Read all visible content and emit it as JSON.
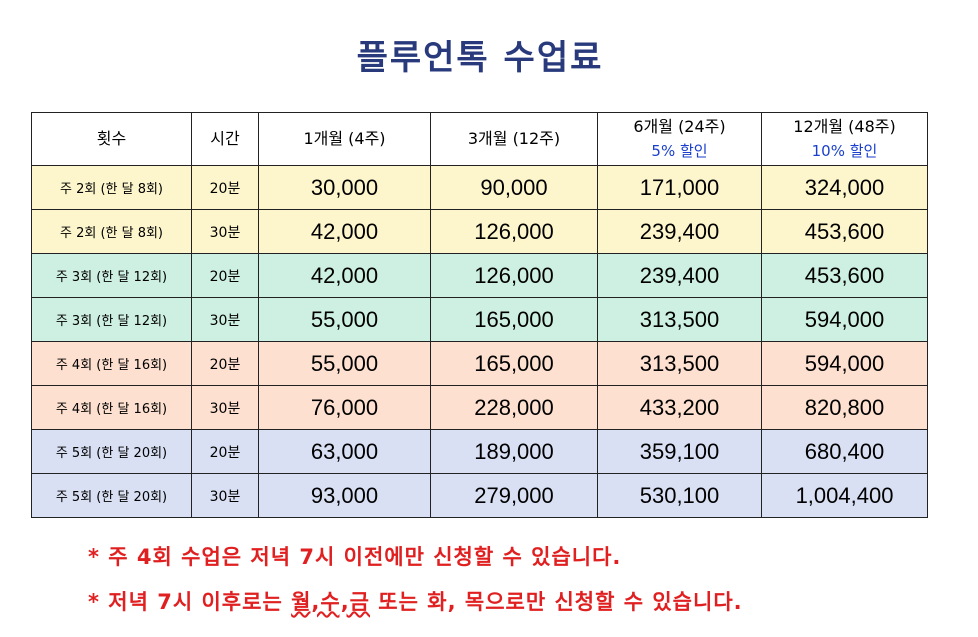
{
  "title": "플루언톡 수업료",
  "headers": {
    "count": "횟수",
    "time": "시간",
    "m1": "1개월 (4주)",
    "m3": "3개월 (12주)",
    "m6": "6개월 (24주)",
    "m6_discount": "5% 할인",
    "m12": "12개월 (48주)",
    "m12_discount": "10% 할인"
  },
  "rows": [
    {
      "count": "주 2회 (한 달 8회)",
      "time": "20분",
      "m1": "30,000",
      "m3": "90,000",
      "m6": "171,000",
      "m12": "324,000",
      "group": 1
    },
    {
      "count": "주 2회 (한 달 8회)",
      "time": "30분",
      "m1": "42,000",
      "m3": "126,000",
      "m6": "239,400",
      "m12": "453,600",
      "group": 1
    },
    {
      "count": "주 3회 (한 달 12회)",
      "time": "20분",
      "m1": "42,000",
      "m3": "126,000",
      "m6": "239,400",
      "m12": "453,600",
      "group": 2
    },
    {
      "count": "주 3회 (한 달 12회)",
      "time": "30분",
      "m1": "55,000",
      "m3": "165,000",
      "m6": "313,500",
      "m12": "594,000",
      "group": 2
    },
    {
      "count": "주 4회 (한 달 16회)",
      "time": "20분",
      "m1": "55,000",
      "m3": "165,000",
      "m6": "313,500",
      "m12": "594,000",
      "group": 3
    },
    {
      "count": "주 4회 (한 달 16회)",
      "time": "30분",
      "m1": "76,000",
      "m3": "228,000",
      "m6": "433,200",
      "m12": "820,800",
      "group": 3
    },
    {
      "count": "주 5회 (한 달 20회)",
      "time": "20분",
      "m1": "63,000",
      "m3": "189,000",
      "m6": "359,100",
      "m12": "680,400",
      "group": 4
    },
    {
      "count": "주 5회 (한 달 20회)",
      "time": "30분",
      "m1": "93,000",
      "m3": "279,000",
      "m6": "530,100",
      "m12": "1,004,400",
      "group": 4
    }
  ],
  "notes": {
    "note1": "* 주 4회 수업은 저녁 7시 이전에만 신청할 수 있습니다.",
    "note2_prefix": "* 저녁 7시 이후로는 ",
    "note2_days": "월,수,금",
    "note2_suffix": " 또는 화, 목으로만 신청할 수 있습니다."
  },
  "colors": {
    "title": "#283a7c",
    "discount": "#1a3fcc",
    "note": "#e02020",
    "group1": "#fdf6cc",
    "group2": "#cdf0e2",
    "group3": "#fde0cf",
    "group4": "#d9e0f4"
  }
}
